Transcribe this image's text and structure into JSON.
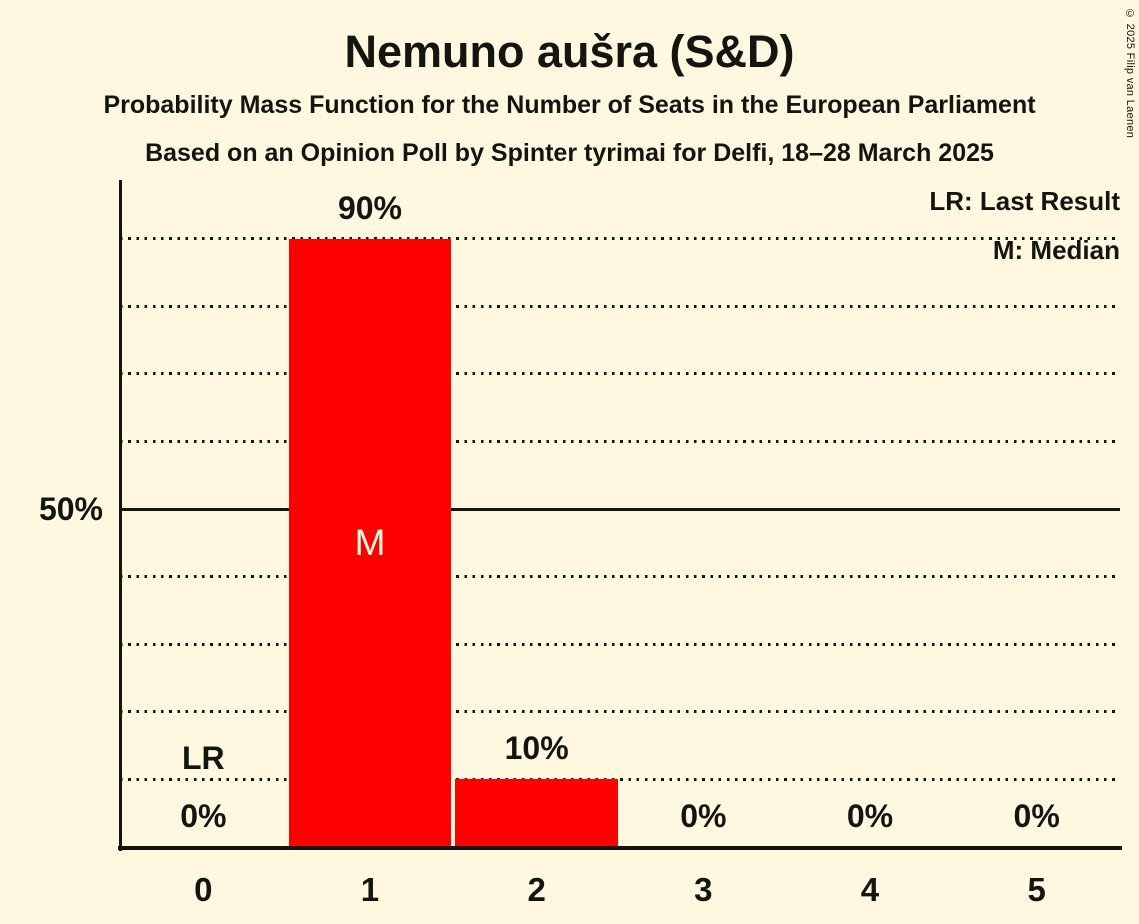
{
  "header": {
    "title": "Nemuno aušra (S&D)",
    "subtitle1": "Probability Mass Function for the Number of Seats in the European Parliament",
    "subtitle2": "Based on an Opinion Poll by Spinter tyrimai for Delfi, 18–28 March 2025"
  },
  "legend": {
    "line1": "LR: Last Result",
    "line2": "M: Median"
  },
  "y_axis": {
    "tick_label": "50%"
  },
  "copyright": "© 2025 Filip van Laenen",
  "chart_data": {
    "type": "bar",
    "title": "Nemuno aušra (S&D)",
    "subtitle": "Probability Mass Function for the Number of Seats in the European Parliament",
    "caption": "Based on an Opinion Poll by Spinter tyrimai for Delfi, 18–28 March 2025",
    "categories": [
      "0",
      "1",
      "2",
      "3",
      "4",
      "5"
    ],
    "values": [
      0,
      90,
      10,
      0,
      0,
      0
    ],
    "value_labels": [
      "0%",
      "90%",
      "10%",
      "0%",
      "0%",
      "0%"
    ],
    "xlabel": "",
    "ylabel": "",
    "ylim": [
      0,
      100
    ],
    "gridlines_pct": [
      10,
      20,
      30,
      40,
      50,
      60,
      70,
      80,
      90
    ],
    "solid_gridline_pct": 50,
    "y_tick_labels_shown": [
      "50%"
    ],
    "grid_style": "dotted",
    "legend_position": "top-right",
    "legend_entries": [
      "LR: Last Result",
      "M: Median"
    ],
    "annotations": [
      {
        "label": "LR",
        "category": "0",
        "meaning": "Last Result"
      },
      {
        "label": "M",
        "category": "1",
        "meaning": "Median"
      }
    ],
    "bar_color": "#ff0000",
    "background_color": "#fff8e1",
    "text_color": "#15150f"
  }
}
